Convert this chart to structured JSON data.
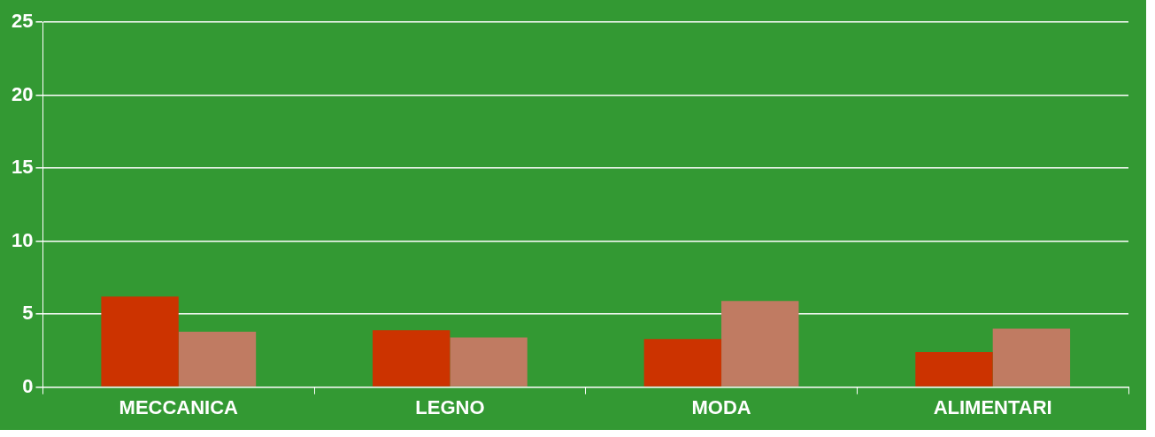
{
  "chart_data": {
    "type": "bar",
    "categories": [
      "MECCANICA",
      "LEGNO",
      "MODA",
      "ALIMENTARI"
    ],
    "series": [
      {
        "color": "#cc3300",
        "values": [
          6.2,
          3.9,
          3.3,
          2.4
        ]
      },
      {
        "color": "#c07b62",
        "values": [
          3.8,
          3.4,
          5.9,
          4.0
        ]
      }
    ],
    "ylim": [
      0,
      25
    ],
    "yticks": [
      0,
      5,
      10,
      15,
      20,
      25
    ],
    "grid": "y",
    "legend": false
  }
}
